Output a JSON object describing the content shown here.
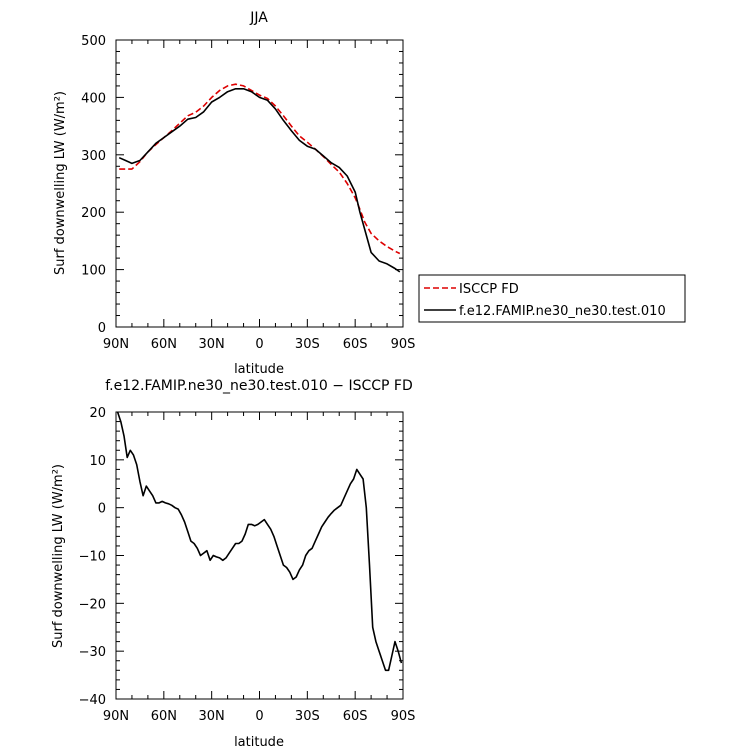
{
  "chart_data": [
    {
      "type": "line",
      "title": "JJA",
      "xlabel": "latitude",
      "ylabel": "Surf downwelling LW (W/m²)",
      "xlim": [
        90,
        -90
      ],
      "ylim": [
        0,
        500
      ],
      "x_ticks": [
        90,
        60,
        30,
        0,
        -30,
        -60,
        -90
      ],
      "x_tick_labels": [
        "90N",
        "60N",
        "30N",
        "0",
        "30S",
        "60S",
        "90S"
      ],
      "y_ticks": [
        0,
        100,
        200,
        300,
        400,
        500
      ],
      "y_tick_labels": [
        "0",
        "100",
        "200",
        "300",
        "400",
        "500"
      ],
      "legend": "right",
      "series": [
        {
          "name": "ISCCP FD",
          "color": "#dd0000",
          "dash": "dashed",
          "x": [
            88,
            84,
            80,
            75,
            70,
            65,
            60,
            55,
            50,
            45,
            40,
            35,
            30,
            25,
            20,
            15,
            10,
            5,
            0,
            -5,
            -10,
            -15,
            -20,
            -25,
            -30,
            -35,
            -40,
            -45,
            -50,
            -55,
            -60,
            -63,
            -66,
            -70,
            -75,
            -80,
            -85,
            -88
          ],
          "values": [
            275,
            275,
            275,
            288,
            305,
            318,
            330,
            342,
            355,
            368,
            374,
            385,
            400,
            412,
            420,
            423,
            420,
            412,
            404,
            398,
            385,
            368,
            350,
            333,
            322,
            310,
            297,
            283,
            270,
            250,
            225,
            205,
            183,
            163,
            150,
            140,
            132,
            128
          ]
        },
        {
          "name": "f.e12.FAMIP.ne30_ne30.test.010",
          "color": "#000000",
          "dash": "solid",
          "x": [
            88,
            84,
            80,
            75,
            70,
            65,
            60,
            55,
            50,
            45,
            40,
            35,
            30,
            25,
            20,
            15,
            10,
            5,
            0,
            -5,
            -10,
            -15,
            -20,
            -25,
            -30,
            -35,
            -40,
            -45,
            -50,
            -55,
            -60,
            -63,
            -66,
            -70,
            -75,
            -80,
            -85,
            -88
          ],
          "values": [
            295,
            290,
            285,
            290,
            305,
            320,
            330,
            340,
            350,
            362,
            365,
            375,
            392,
            400,
            410,
            415,
            415,
            410,
            400,
            395,
            380,
            360,
            342,
            325,
            315,
            310,
            298,
            286,
            278,
            263,
            235,
            200,
            170,
            130,
            115,
            110,
            102,
            96
          ]
        }
      ]
    },
    {
      "type": "line",
      "title": "f.e12.FAMIP.ne30_ne30.test.010 − ISCCP FD",
      "xlabel": "latitude",
      "ylabel": "Surf downwelling LW (W/m²)",
      "xlim": [
        90,
        -90
      ],
      "ylim": [
        -40,
        20
      ],
      "x_ticks": [
        90,
        60,
        30,
        0,
        -30,
        -60,
        -90
      ],
      "x_tick_labels": [
        "90N",
        "60N",
        "30N",
        "0",
        "30S",
        "60S",
        "90S"
      ],
      "y_ticks": [
        -40,
        -30,
        -20,
        -10,
        0,
        10,
        20
      ],
      "y_tick_labels": [
        "−40",
        "−30",
        "−20",
        "−10",
        "0",
        "10",
        "20"
      ],
      "series": [
        {
          "color": "#000000",
          "dash": "solid",
          "x": [
            89,
            87,
            85,
            83,
            81,
            79,
            77,
            75,
            73,
            71,
            69,
            67,
            65,
            63,
            61,
            59,
            57,
            55,
            53,
            51,
            49,
            47,
            45,
            43,
            41,
            39,
            37,
            35,
            33,
            31,
            29,
            27,
            25,
            23,
            21,
            19,
            17,
            15,
            13,
            11,
            9,
            7,
            5,
            3,
            1,
            -1,
            -3,
            -5,
            -7,
            -9,
            -11,
            -13,
            -15,
            -17,
            -19,
            -21,
            -23,
            -25,
            -27,
            -29,
            -31,
            -33,
            -35,
            -37,
            -39,
            -41,
            -43,
            -45,
            -47,
            -49,
            -51,
            -53,
            -55,
            -57,
            -59,
            -61,
            -63,
            -65,
            -67,
            -69,
            -71,
            -73,
            -75,
            -77,
            -79,
            -81,
            -83,
            -85,
            -87,
            -89
          ],
          "values": [
            20,
            18,
            15,
            10.5,
            12,
            11,
            9,
            5.5,
            2.5,
            4.5,
            3.5,
            2.5,
            1,
            1,
            1.3,
            1,
            0.8,
            0.5,
            0,
            -0.3,
            -1.5,
            -3,
            -5,
            -7,
            -7.5,
            -8.5,
            -10,
            -9.5,
            -9,
            -11,
            -10,
            -10.3,
            -10.5,
            -11,
            -10.5,
            -9.5,
            -8.5,
            -7.5,
            -7.5,
            -7,
            -5.5,
            -3.5,
            -3.5,
            -3.8,
            -3.5,
            -3,
            -2.5,
            -3.5,
            -4.5,
            -6,
            -8,
            -10,
            -12,
            -12.5,
            -13.5,
            -15,
            -14.5,
            -13,
            -12,
            -10,
            -9,
            -8.5,
            -7,
            -5.5,
            -4,
            -3,
            -2,
            -1.2,
            -0.5,
            0,
            0.5,
            2,
            3.5,
            5,
            6,
            8,
            7,
            6,
            0,
            -12,
            -25,
            -28,
            -30,
            -32,
            -34,
            -34,
            -31,
            -28,
            -30,
            -32.5
          ]
        }
      ]
    }
  ]
}
